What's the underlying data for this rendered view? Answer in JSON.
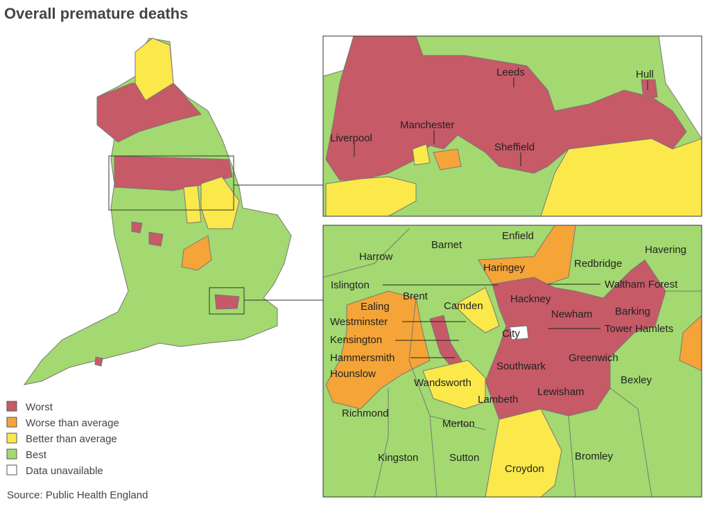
{
  "title": "Overall premature deaths",
  "legend": [
    {
      "label": "Worst",
      "color": "#c65a67"
    },
    {
      "label": "Worse than average",
      "color": "#f5a437"
    },
    {
      "label": "Better than average",
      "color": "#fbe84a"
    },
    {
      "label": "Best",
      "color": "#a3d970"
    },
    {
      "label": "Data unavailable",
      "color": "#ffffff"
    }
  ],
  "source": "Source: Public Health England",
  "north_inset": {
    "labels": [
      "Leeds",
      "Hull",
      "Liverpool",
      "Manchester",
      "Sheffield"
    ]
  },
  "london_inset": {
    "labels": [
      "Enfield",
      "Barnet",
      "Harrow",
      "Havering",
      "Haringey",
      "Redbridge",
      "Islington",
      "Waltham Forest",
      "Brent",
      "Hackney",
      "Camden",
      "Ealing",
      "Barking",
      "Newham",
      "Westminster",
      "Tower Hamlets",
      "City",
      "Kensington",
      "Greenwich",
      "Hammersmith",
      "Southwark",
      "Hounslow",
      "Bexley",
      "Wandsworth",
      "Lewisham",
      "Lambeth",
      "Richmond",
      "Merton",
      "Kingston",
      "Sutton",
      "Croydon",
      "Bromley"
    ]
  }
}
